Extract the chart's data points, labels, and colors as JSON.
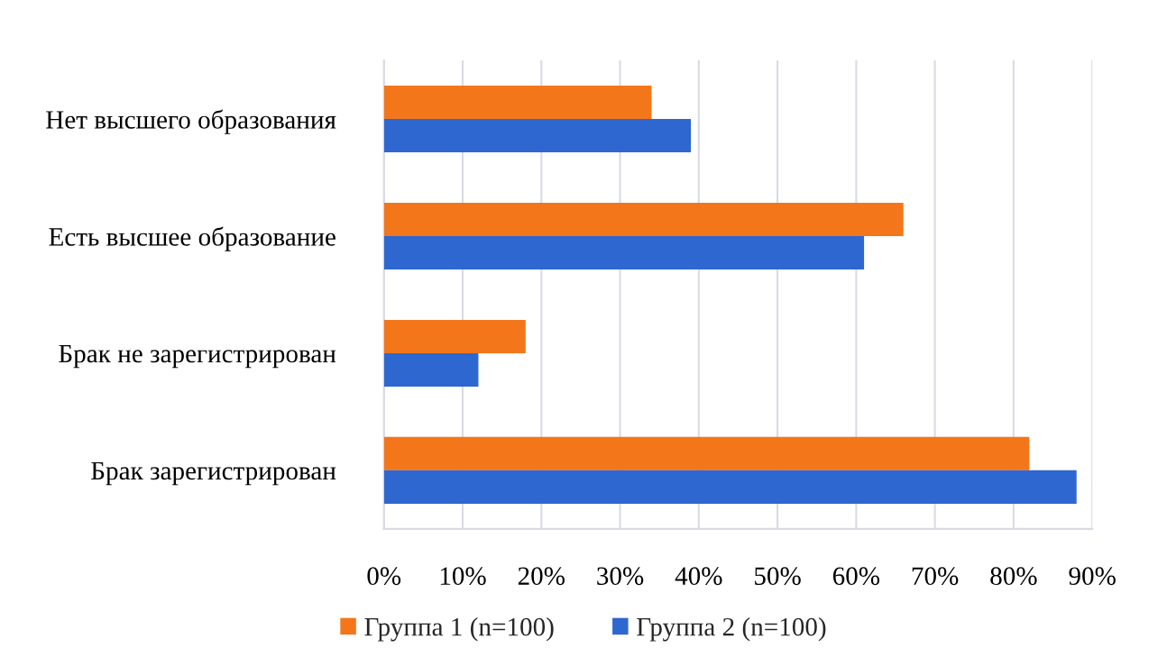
{
  "chart_data": {
    "type": "bar",
    "orientation": "horizontal",
    "categories": [
      "Нет высшего образования",
      "Есть высшее образование",
      "Брак не зарегистрирован",
      "Брак зарегистрирован"
    ],
    "series": [
      {
        "name": "Группа 1 (n=100)",
        "color": "#f4761a",
        "values": [
          34,
          66,
          18,
          82
        ]
      },
      {
        "name": "Группа 2 (n=100)",
        "color": "#2e67cf",
        "values": [
          39,
          61,
          12,
          88
        ]
      }
    ],
    "xlim": [
      0,
      90
    ],
    "xticks": [
      {
        "value": 0,
        "label": "0%"
      },
      {
        "value": 10,
        "label": "10%"
      },
      {
        "value": 20,
        "label": "20%"
      },
      {
        "value": 30,
        "label": "30%"
      },
      {
        "value": 40,
        "label": "40%"
      },
      {
        "value": 50,
        "label": "50%"
      },
      {
        "value": 60,
        "label": "60%"
      },
      {
        "value": 70,
        "label": "70%"
      },
      {
        "value": 80,
        "label": "80%"
      },
      {
        "value": 90,
        "label": "90%"
      }
    ],
    "grid": "x",
    "legend": "bottom"
  }
}
